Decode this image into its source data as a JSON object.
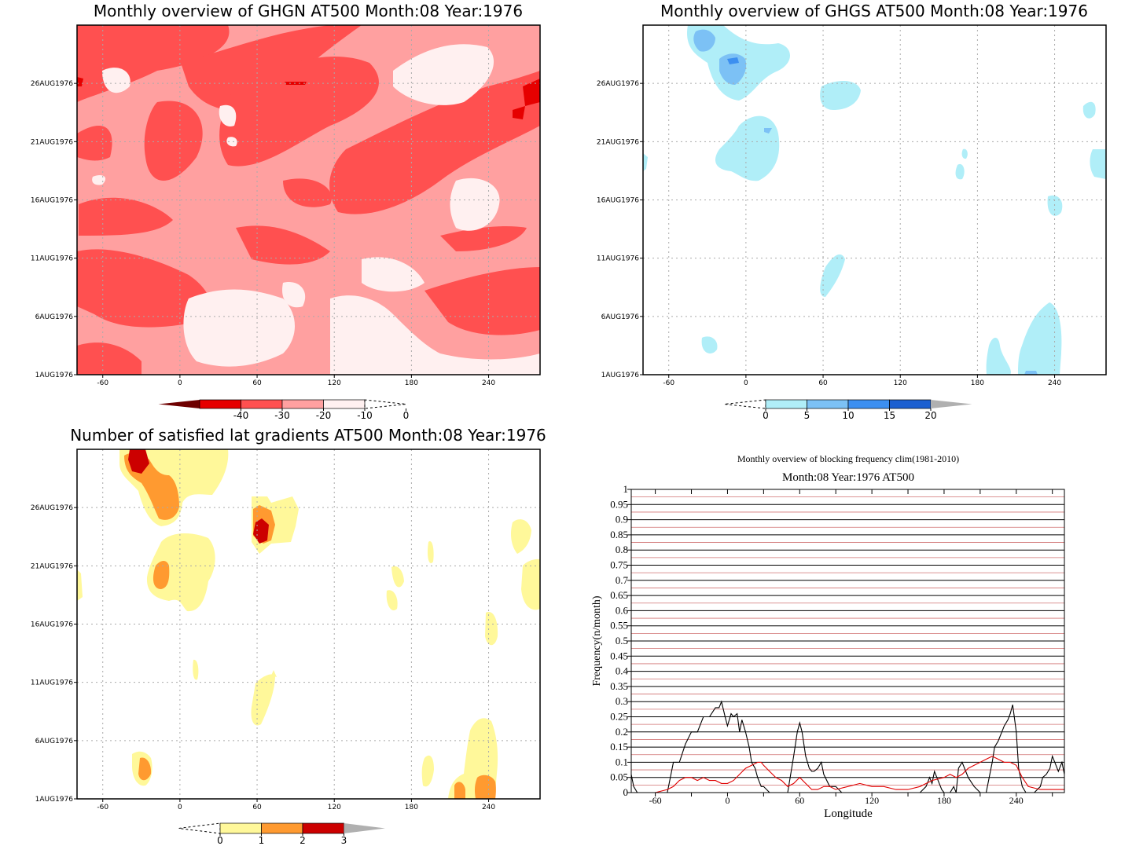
{
  "palette": {
    "reds": [
      "#6e0000",
      "#e60000",
      "#ff5050",
      "#ffa0a0",
      "#fff0f0"
    ],
    "blues": [
      "#b0eef8",
      "#7cc1f5",
      "#3c8ff0",
      "#1c5fd0",
      "#b0b0b0"
    ],
    "yellows": [
      "#fff89a",
      "#ff9a30",
      "#cc0000",
      "#b0b0b0"
    ]
  },
  "chart_data": [
    {
      "type": "heatmap",
      "title": "Monthly overview of GHGN AT500 Month:08 Year:1976",
      "x_ticks": [
        "-60",
        "0",
        "60",
        "120",
        "180",
        "240"
      ],
      "y_ticks": [
        "26AUG1976",
        "21AUG1976",
        "16AUG1976",
        "11AUG1976",
        "6AUG1976",
        "1AUG1976"
      ],
      "xlim": [
        -80,
        280
      ],
      "ylim": [
        "1AUG1976",
        "31AUG1976"
      ],
      "grid": true,
      "colorbar": {
        "labels": [
          "-40",
          "-30",
          "-20",
          "-10",
          "0"
        ],
        "extend_left": true,
        "extend_right_empty": true
      },
      "dominant_levels": [
        "-20 to -10",
        "-30 to -20",
        "-10 to 0"
      ]
    },
    {
      "type": "heatmap",
      "title": "Monthly overview of GHGS AT500 Month:08 Year:1976",
      "x_ticks": [
        "-60",
        "0",
        "60",
        "120",
        "180",
        "240"
      ],
      "y_ticks": [
        "26AUG1976",
        "21AUG1976",
        "16AUG1976",
        "11AUG1976",
        "6AUG1976",
        "1AUG1976"
      ],
      "xlim": [
        -80,
        280
      ],
      "ylim": [
        "1AUG1976",
        "31AUG1976"
      ],
      "grid": true,
      "colorbar": {
        "labels": [
          "0",
          "5",
          "10",
          "15",
          "20"
        ],
        "extend_left_empty": true,
        "extend_right": true
      }
    },
    {
      "type": "heatmap",
      "title": "Number of satisfied lat gradients AT500 Month:08 Year:1976",
      "x_ticks": [
        "-60",
        "0",
        "60",
        "120",
        "180",
        "240"
      ],
      "y_ticks": [
        "26AUG1976",
        "21AUG1976",
        "16AUG1976",
        "11AUG1976",
        "6AUG1976",
        "1AUG1976"
      ],
      "xlim": [
        -80,
        280
      ],
      "ylim": [
        "1AUG1976",
        "31AUG1976"
      ],
      "grid": true,
      "colorbar": {
        "labels": [
          "0",
          "1",
          "2",
          "3"
        ],
        "extend_left_empty": true,
        "extend_right": true
      }
    },
    {
      "type": "line",
      "title": "Monthly overview of blocking frequency clim(1981-2010)",
      "subtitle": "Month:08 Year:1976  AT500",
      "xlabel": "Longitude",
      "ylabel": "Frequency(n/month)",
      "xlim": [
        -80,
        280
      ],
      "ylim": [
        0,
        1
      ],
      "x_ticks": [
        "-60",
        "0",
        "60",
        "120",
        "180",
        "240"
      ],
      "y_ticks": [
        "0",
        "0.05",
        "0.1",
        "0.15",
        "0.2",
        "0.25",
        "0.3",
        "0.35",
        "0.4",
        "0.45",
        "0.5",
        "0.55",
        "0.6",
        "0.65",
        "0.7",
        "0.75",
        "0.8",
        "0.85",
        "0.9",
        "0.95",
        "1"
      ],
      "series": [
        {
          "color": "#000000",
          "x": [
            -80,
            -78,
            -75,
            -70,
            -60,
            -50,
            -45,
            -40,
            -35,
            -30,
            -25,
            -20,
            -15,
            -10,
            -7,
            -5,
            -2,
            0,
            3,
            5,
            8,
            10,
            12,
            15,
            18,
            20,
            23,
            25,
            28,
            30,
            35,
            40,
            45,
            50,
            55,
            58,
            60,
            62,
            65,
            68,
            70,
            72,
            75,
            78,
            80,
            85,
            90,
            95,
            100,
            105,
            110,
            115,
            120,
            130,
            140,
            150,
            160,
            165,
            168,
            170,
            172,
            175,
            178,
            180,
            185,
            188,
            190,
            192,
            195,
            200,
            205,
            210,
            215,
            220,
            222,
            225,
            228,
            230,
            233,
            235,
            237,
            240,
            242,
            245,
            248,
            250,
            255,
            260,
            262,
            265,
            268,
            270,
            272,
            275,
            278,
            280
          ],
          "y": [
            0.06,
            0.02,
            0,
            0,
            0,
            0,
            0.1,
            0.1,
            0.16,
            0.2,
            0.2,
            0.25,
            0.25,
            0.28,
            0.28,
            0.3,
            0.25,
            0.22,
            0.26,
            0.25,
            0.26,
            0.2,
            0.24,
            0.2,
            0.15,
            0.1,
            0.08,
            0.05,
            0.02,
            0.02,
            0,
            0,
            0,
            0,
            0.12,
            0.2,
            0.23,
            0.2,
            0.12,
            0.08,
            0.07,
            0.07,
            0.08,
            0.1,
            0.06,
            0.02,
            0.02,
            0,
            0,
            0,
            0,
            0,
            0,
            0,
            0,
            0,
            0,
            0.02,
            0.05,
            0.03,
            0.07,
            0.04,
            0.01,
            0,
            0,
            0.02,
            0,
            0.08,
            0.1,
            0.05,
            0.02,
            0,
            0,
            0.1,
            0.15,
            0.17,
            0.2,
            0.22,
            0.24,
            0.26,
            0.29,
            0.2,
            0.08,
            0.02,
            0,
            0,
            0,
            0.02,
            0.05,
            0.06,
            0.08,
            0.12,
            0.1,
            0.07,
            0.1,
            0.06
          ]
        },
        {
          "color": "#e00000",
          "x": [
            -80,
            -70,
            -60,
            -50,
            -45,
            -40,
            -35,
            -30,
            -25,
            -20,
            -15,
            -10,
            -5,
            0,
            5,
            10,
            15,
            20,
            25,
            28,
            30,
            35,
            40,
            45,
            50,
            55,
            60,
            65,
            70,
            75,
            80,
            85,
            90,
            100,
            110,
            120,
            130,
            140,
            150,
            160,
            170,
            180,
            185,
            190,
            195,
            200,
            205,
            210,
            215,
            220,
            225,
            230,
            235,
            240,
            245,
            250,
            260,
            270,
            280
          ],
          "y": [
            0,
            0,
            0,
            0.01,
            0.02,
            0.04,
            0.05,
            0.05,
            0.04,
            0.05,
            0.04,
            0.04,
            0.03,
            0.03,
            0.04,
            0.06,
            0.08,
            0.09,
            0.1,
            0.1,
            0.09,
            0.07,
            0.05,
            0.04,
            0.02,
            0.03,
            0.05,
            0.03,
            0.01,
            0.01,
            0.02,
            0.02,
            0.01,
            0.02,
            0.03,
            0.02,
            0.02,
            0.01,
            0.01,
            0.02,
            0.04,
            0.05,
            0.06,
            0.05,
            0.06,
            0.08,
            0.09,
            0.1,
            0.11,
            0.12,
            0.11,
            0.1,
            0.1,
            0.09,
            0.05,
            0.02,
            0.01,
            0.01,
            0.01
          ]
        }
      ]
    }
  ]
}
